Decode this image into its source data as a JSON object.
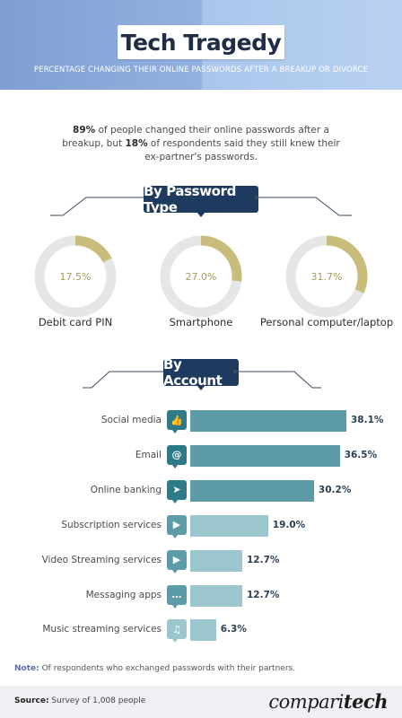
{
  "header": {
    "title": "Tech Tragedy",
    "subtitle": "PERCENTAGE CHANGING THEIR ONLINE PASSWORDS AFTER A BREAKUP OR DIVORCE"
  },
  "intro": {
    "pct1": "89%",
    "text1": " of people changed their online passwords after a breakup, but ",
    "pct2": "18%",
    "text2": " of respondents said they still knew their ex-partner's passwords."
  },
  "section_type": {
    "label": "By Password Type"
  },
  "section_account": {
    "label": "By Account"
  },
  "colors": {
    "navy": "#1f3a5f",
    "donut_fill": "#c9bd7c",
    "donut_track": "#e6e6e6",
    "bar_dark": "#2e7a86",
    "bar_mid": "#5d9ca6",
    "bar_light": "#9bc6cd"
  },
  "chart_data": [
    {
      "type": "pie",
      "title": "By Password Type",
      "categories": [
        "Debit card PIN",
        "Smartphone",
        "Personal computer/laptop"
      ],
      "values": [
        17.5,
        27.0,
        31.7
      ],
      "value_labels": [
        "17.5%",
        "27.0%",
        "31.7%"
      ],
      "unit": "%"
    },
    {
      "type": "bar",
      "title": "By Account",
      "orientation": "horizontal",
      "categories": [
        "Social media",
        "Email",
        "Online banking",
        "Subscription services",
        "Video Streaming services",
        "Messaging apps",
        "Music streaming services"
      ],
      "values": [
        38.1,
        36.5,
        30.2,
        19.0,
        12.7,
        12.7,
        6.3
      ],
      "value_labels": [
        "38.1%",
        "36.5%",
        "30.2%",
        "19.0%",
        "12.7%",
        "12.7%",
        "6.3%"
      ],
      "icons": [
        "thumbs-up-icon",
        "at-sign-icon",
        "cursor-icon",
        "subscription-play-icon",
        "play-icon",
        "chat-bubble-icon",
        "music-note-icon"
      ],
      "unit": "%"
    }
  ],
  "note": {
    "label": "Note:",
    "text": " Of respondents who exchanged passwords with their partners."
  },
  "footer": {
    "source_label": "Source:",
    "source_text": " Survey of 1,008 people",
    "brand_regular": "compari",
    "brand_bold": "tech"
  }
}
